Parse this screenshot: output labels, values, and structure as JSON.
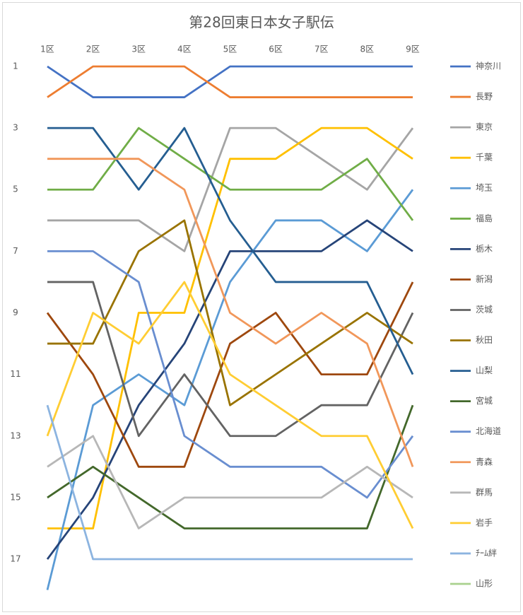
{
  "chart_data": {
    "type": "line",
    "title": "第28回東日本女子駅伝",
    "categories": [
      "1区",
      "2区",
      "3区",
      "4区",
      "5区",
      "6区",
      "7区",
      "8区",
      "9区"
    ],
    "ylim": [
      0.5,
      18
    ],
    "y_inverted": true,
    "yticks": [
      1,
      3,
      5,
      7,
      9,
      11,
      13,
      15,
      17
    ],
    "grid": false,
    "legend": "right",
    "series": [
      {
        "name": "神奈川",
        "color": "#4472c4",
        "values": [
          1,
          2,
          2,
          2,
          1,
          1,
          1,
          1,
          1
        ]
      },
      {
        "name": "長野",
        "color": "#ed7d31",
        "values": [
          2,
          1,
          1,
          1,
          2,
          2,
          2,
          2,
          2
        ]
      },
      {
        "name": "東京",
        "color": "#a5a5a5",
        "values": [
          6,
          6,
          6,
          7,
          3,
          3,
          4,
          5,
          3
        ]
      },
      {
        "name": "千葉",
        "color": "#ffc000",
        "values": [
          16,
          16,
          9,
          9,
          4,
          4,
          3,
          3,
          4
        ]
      },
      {
        "name": "埼玉",
        "color": "#5b9bd5",
        "values": [
          18,
          12,
          11,
          12,
          8,
          6,
          6,
          7,
          5
        ]
      },
      {
        "name": "福島",
        "color": "#70ad47",
        "values": [
          5,
          5,
          3,
          4,
          5,
          5,
          5,
          4,
          6
        ]
      },
      {
        "name": "栃木",
        "color": "#264478",
        "values": [
          17,
          15,
          12,
          10,
          7,
          7,
          7,
          6,
          7
        ]
      },
      {
        "name": "新潟",
        "color": "#9e480e",
        "values": [
          9,
          11,
          14,
          14,
          10,
          9,
          11,
          11,
          8
        ]
      },
      {
        "name": "茨城",
        "color": "#636363",
        "values": [
          8,
          8,
          13,
          11,
          13,
          13,
          12,
          12,
          9
        ]
      },
      {
        "name": "秋田",
        "color": "#997300",
        "values": [
          10,
          10,
          7,
          6,
          12,
          11,
          10,
          9,
          10
        ]
      },
      {
        "name": "山梨",
        "color": "#255e91",
        "values": [
          3,
          3,
          5,
          3,
          6,
          8,
          8,
          8,
          11
        ]
      },
      {
        "name": "宮城",
        "color": "#43682b",
        "values": [
          15,
          14,
          15,
          16,
          16,
          16,
          16,
          16,
          12
        ]
      },
      {
        "name": "北海道",
        "color": "#698ed0",
        "values": [
          7,
          7,
          8,
          13,
          14,
          14,
          14,
          15,
          13
        ]
      },
      {
        "name": "青森",
        "color": "#f1975a",
        "values": [
          4,
          4,
          4,
          5,
          9,
          10,
          9,
          10,
          14
        ]
      },
      {
        "name": "群馬",
        "color": "#b7b7b7",
        "values": [
          14,
          13,
          16,
          15,
          15,
          15,
          15,
          14,
          15
        ]
      },
      {
        "name": "岩手",
        "color": "#ffcd33",
        "values": [
          13,
          9,
          10,
          8,
          11,
          12,
          13,
          13,
          16
        ]
      },
      {
        "name": "ﾁｰﾑ絆",
        "color": "#8cb4e0",
        "values": [
          12,
          17,
          17,
          17,
          17,
          17,
          17,
          17,
          17
        ]
      },
      {
        "name": "山形",
        "color": "#a9d18e",
        "values": [
          null,
          null,
          null,
          null,
          null,
          null,
          null,
          null,
          null
        ]
      }
    ]
  }
}
